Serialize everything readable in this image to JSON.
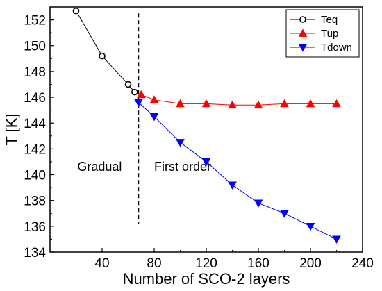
{
  "chart_data": {
    "type": "line",
    "xlabel": "Number of SCO-2 layers",
    "ylabel": "T [K]",
    "xlim": [
      0,
      240
    ],
    "ylim": [
      134,
      153
    ],
    "xticks": [
      40,
      80,
      120,
      160,
      200,
      240
    ],
    "yticks": [
      134,
      136,
      138,
      140,
      142,
      144,
      146,
      148,
      150,
      152
    ],
    "x_tick_labels": [
      "40",
      "80",
      "120",
      "160",
      "200",
      "240"
    ],
    "y_tick_labels": [
      "134",
      "136",
      "138",
      "140",
      "142",
      "144",
      "146",
      "148",
      "150",
      "152"
    ],
    "legend_position": "top-right",
    "series": [
      {
        "name": "Teq",
        "color": "#000000",
        "marker": "open-circle",
        "x": [
          20,
          40,
          60,
          65
        ],
        "y": [
          152.7,
          149.2,
          147.0,
          146.4
        ]
      },
      {
        "name": "Tup",
        "color": "#ff0000",
        "marker": "triangle-up",
        "x": [
          70,
          80,
          100,
          120,
          140,
          160,
          180,
          200,
          220
        ],
        "y": [
          146.2,
          145.8,
          145.5,
          145.5,
          145.4,
          145.4,
          145.5,
          145.5,
          145.5
        ]
      },
      {
        "name": "Tdown",
        "color": "#0000ff",
        "marker": "triangle-down",
        "x": [
          68,
          80,
          100,
          120,
          140,
          160,
          180,
          200,
          220
        ],
        "y": [
          145.6,
          144.5,
          142.5,
          141.0,
          139.2,
          137.8,
          137.0,
          136.0,
          135.0
        ]
      }
    ],
    "vertical_line": {
      "x": 68,
      "style": "dashed",
      "y_range": [
        136.2,
        152.5
      ]
    },
    "annotations": [
      {
        "text": "Gradual",
        "x": 21,
        "y": 140.3
      },
      {
        "text": "First order",
        "x": 80,
        "y": 140.3
      }
    ]
  }
}
